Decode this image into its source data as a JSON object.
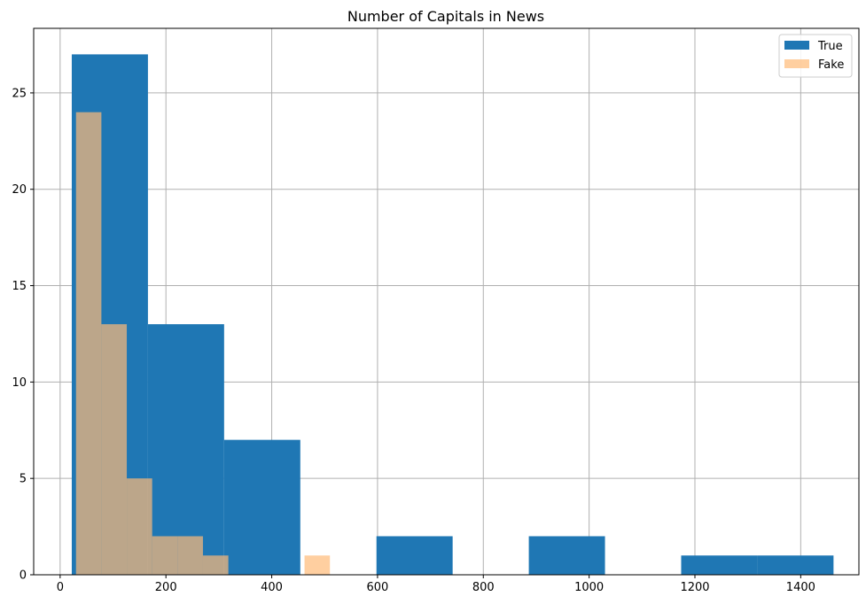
{
  "chart_data": {
    "type": "bar",
    "title": "Number of Capitals in News",
    "xlabel": "",
    "ylabel": "",
    "xlim": [
      -50,
      1510
    ],
    "ylim": [
      0,
      28.35
    ],
    "xticks": [
      0,
      200,
      400,
      600,
      800,
      1000,
      1200,
      1400
    ],
    "yticks": [
      0,
      5,
      10,
      15,
      20,
      25
    ],
    "grid": true,
    "legend_position": "top-right",
    "series": [
      {
        "name": "True",
        "color": "#1f77b4",
        "opacity": 1.0,
        "bins": [
          {
            "x0": 22,
            "x1": 166,
            "count": 27
          },
          {
            "x0": 166,
            "x1": 310,
            "count": 13
          },
          {
            "x0": 310,
            "x1": 454,
            "count": 7
          },
          {
            "x0": 454,
            "x1": 598,
            "count": 0
          },
          {
            "x0": 598,
            "x1": 742,
            "count": 2
          },
          {
            "x0": 742,
            "x1": 886,
            "count": 0
          },
          {
            "x0": 886,
            "x1": 1030,
            "count": 2
          },
          {
            "x0": 1030,
            "x1": 1174,
            "count": 0
          },
          {
            "x0": 1174,
            "x1": 1318,
            "count": 1
          },
          {
            "x0": 1318,
            "x1": 1462,
            "count": 1
          }
        ]
      },
      {
        "name": "Fake",
        "color": "#ffbb78",
        "opacity": 0.7,
        "bins": [
          {
            "x0": 30,
            "x1": 78,
            "count": 24
          },
          {
            "x0": 78,
            "x1": 126,
            "count": 13
          },
          {
            "x0": 126,
            "x1": 174,
            "count": 5
          },
          {
            "x0": 174,
            "x1": 222,
            "count": 2
          },
          {
            "x0": 222,
            "x1": 270,
            "count": 2
          },
          {
            "x0": 270,
            "x1": 318,
            "count": 1
          },
          {
            "x0": 318,
            "x1": 366,
            "count": 0
          },
          {
            "x0": 366,
            "x1": 414,
            "count": 0
          },
          {
            "x0": 414,
            "x1": 462,
            "count": 0
          },
          {
            "x0": 462,
            "x1": 510,
            "count": 1
          }
        ]
      }
    ]
  }
}
